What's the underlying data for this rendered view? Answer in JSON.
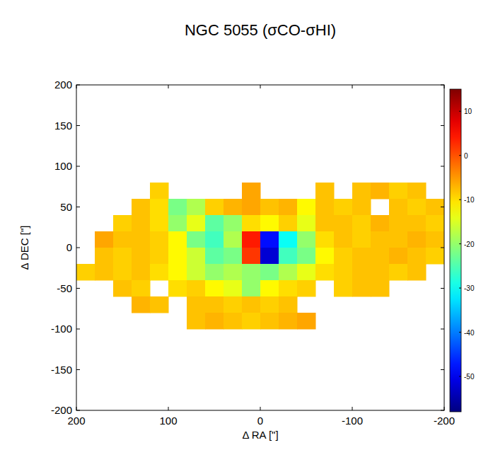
{
  "chart_data": {
    "type": "heatmap",
    "title": "NGC 5055 (σCO-σHI)",
    "x_label": "Δ RA [\"]",
    "y_label": "Δ DEC [\"]",
    "xlim": [
      200,
      -200
    ],
    "xticks": [
      200,
      100,
      0,
      -100,
      -200
    ],
    "ylim": [
      -200,
      200
    ],
    "yticks": [
      -200,
      -150,
      -100,
      -50,
      0,
      50,
      100,
      150,
      200
    ],
    "x": [
      190,
      170,
      150,
      130,
      110,
      90,
      70,
      50,
      30,
      10,
      -10,
      -30,
      -50,
      -70,
      -90,
      -110,
      -130,
      -150,
      -170,
      -190
    ],
    "y": [
      70,
      50,
      30,
      10,
      -10,
      -30,
      -50,
      -70,
      -90
    ],
    "z": [
      [
        null,
        null,
        null,
        null,
        -9,
        null,
        null,
        null,
        null,
        -6,
        null,
        null,
        null,
        -8,
        null,
        -8,
        -7,
        -9,
        -8,
        null
      ],
      [
        null,
        null,
        null,
        -8,
        -10,
        -22,
        -18,
        -9,
        -7,
        -6,
        -8,
        -7,
        -12,
        -8,
        -9,
        -8,
        null,
        -8,
        -9,
        -8
      ],
      [
        null,
        null,
        -9,
        -8,
        -10,
        -20,
        -14,
        -24,
        -20,
        -10,
        -12,
        -9,
        -14,
        -8,
        -8,
        -9,
        -7,
        -8,
        -8,
        -9
      ],
      [
        null,
        -6,
        -8,
        -8,
        -9,
        -12,
        -22,
        -26,
        -18,
        4,
        -48,
        -30,
        -20,
        -10,
        -8,
        -9,
        -8,
        -8,
        -7,
        -8
      ],
      [
        null,
        -8,
        -9,
        -8,
        -9,
        -12,
        -16,
        -24,
        -22,
        2,
        -52,
        -26,
        -22,
        -12,
        -9,
        -8,
        -8,
        -7,
        -8,
        -9
      ],
      [
        -9,
        -8,
        -9,
        -8,
        -10,
        -12,
        -16,
        -20,
        -18,
        -20,
        -22,
        -18,
        -14,
        -10,
        -9,
        -8,
        -8,
        -9,
        -8,
        null
      ],
      [
        null,
        null,
        -8,
        -9,
        null,
        -10,
        -9,
        -12,
        -14,
        -20,
        -12,
        -10,
        -9,
        null,
        -9,
        -8,
        -8,
        null,
        null,
        null
      ],
      [
        null,
        null,
        null,
        -7,
        -8,
        null,
        -8,
        -8,
        -9,
        -8,
        -9,
        -8,
        null,
        null,
        null,
        null,
        null,
        null,
        null,
        null
      ],
      [
        null,
        null,
        null,
        null,
        null,
        null,
        -8,
        -7,
        -8,
        -9,
        -8,
        -7,
        -6,
        null,
        null,
        null,
        null,
        null,
        null,
        null
      ]
    ],
    "colorbar_range": [
      -58,
      15
    ],
    "colorbar_ticks": [
      10,
      0,
      -10,
      -20,
      -30,
      -40,
      -50
    ]
  }
}
